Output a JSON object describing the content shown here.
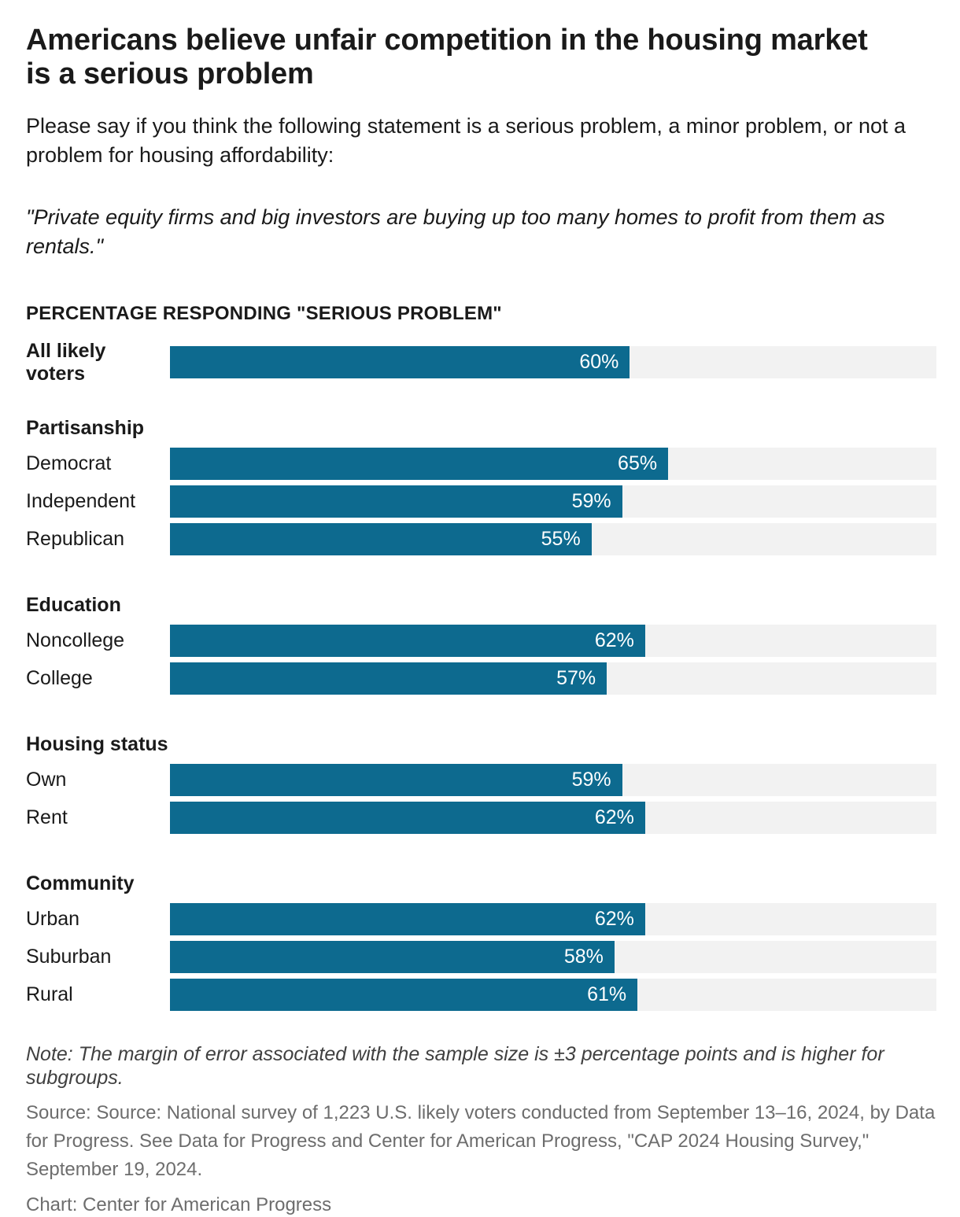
{
  "title": "Americans believe unfair competition in the housing market is a serious problem",
  "subtitle": "Please say if you think the following statement is a serious problem, a minor problem, or not a problem for housing affordability:",
  "quote": "\"Private equity firms and big investors are buying up too many homes to profit from them as rentals.\"",
  "chart_data": {
    "type": "bar",
    "orientation": "horizontal",
    "title": "PERCENTAGE RESPONDING \"SERIOUS PROBLEM\"",
    "unit": "%",
    "xlim": [
      0,
      100
    ],
    "bar_color": "#0d6a8f",
    "track_color": "#f2f2f2",
    "value_label_position": "inside-end",
    "groups": [
      {
        "header": "",
        "rows": [
          {
            "label": "All likely voters",
            "value": 60,
            "bold": true
          }
        ]
      },
      {
        "header": "Partisanship",
        "rows": [
          {
            "label": "Democrat",
            "value": 65,
            "bold": false
          },
          {
            "label": "Independent",
            "value": 59,
            "bold": false
          },
          {
            "label": "Republican",
            "value": 55,
            "bold": false
          }
        ]
      },
      {
        "header": "Education",
        "rows": [
          {
            "label": "Noncollege",
            "value": 62,
            "bold": false
          },
          {
            "label": "College",
            "value": 57,
            "bold": false
          }
        ]
      },
      {
        "header": "Housing status",
        "rows": [
          {
            "label": "Own",
            "value": 59,
            "bold": false
          },
          {
            "label": "Rent",
            "value": 62,
            "bold": false
          }
        ]
      },
      {
        "header": "Community",
        "rows": [
          {
            "label": "Urban",
            "value": 62,
            "bold": false
          },
          {
            "label": "Suburban",
            "value": 58,
            "bold": false
          },
          {
            "label": "Rural",
            "value": 61,
            "bold": false
          }
        ]
      }
    ]
  },
  "footer": {
    "note": "Note: The margin of error associated with the sample size is ±3 percentage points and is higher for subgroups.",
    "source": "Source: Source: National survey of 1,223 U.S. likely voters conducted from September 13–16, 2024, by Data for Progress. See Data for Progress and Center for American Progress, \"CAP 2024 Housing Survey,\" September 19, 2024.",
    "credit": "Chart: Center for American Progress"
  }
}
